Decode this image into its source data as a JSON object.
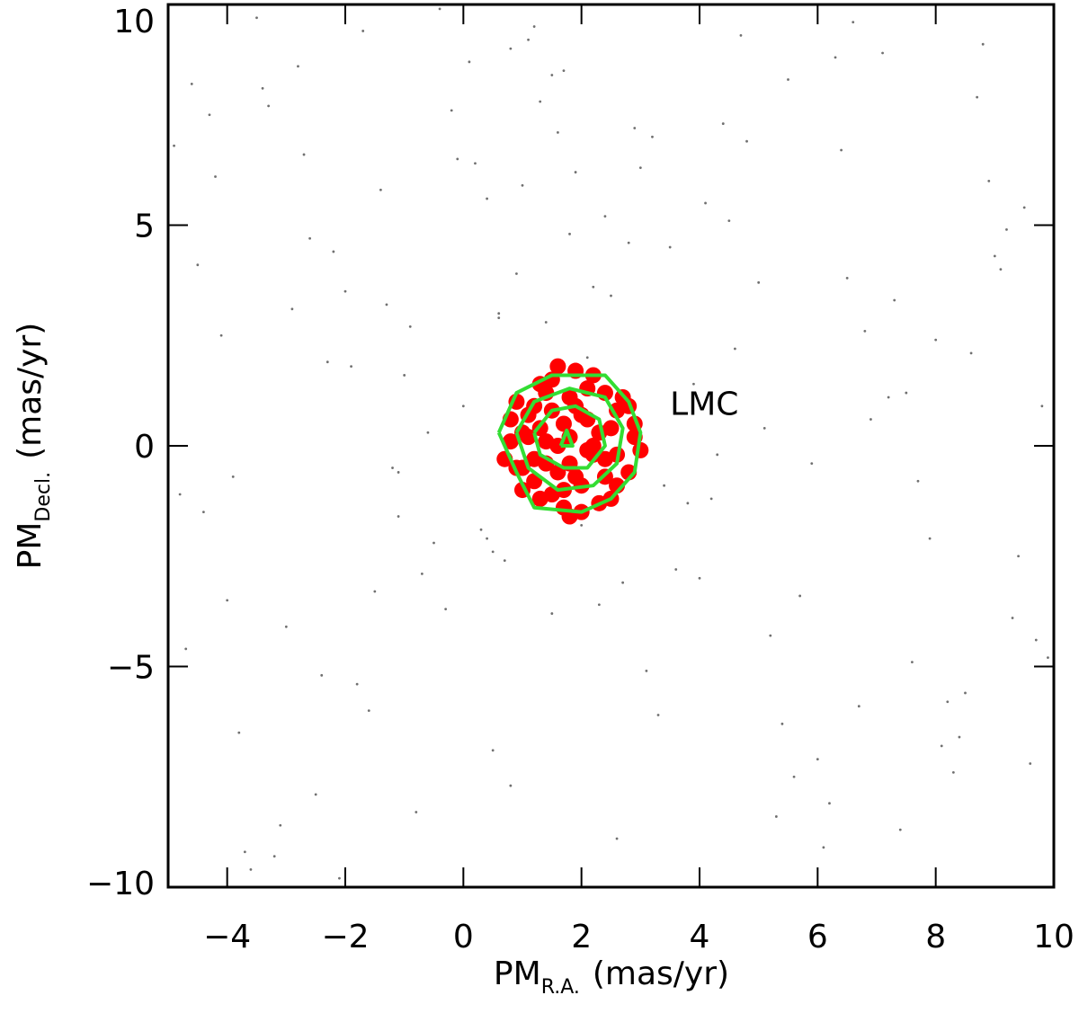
{
  "chart_data": {
    "type": "scatter",
    "x_label": {
      "main": "PM",
      "sub": "R.A.",
      "unit": "(mas/yr)"
    },
    "y_label": {
      "main": "PM",
      "sub": "Decl.",
      "unit": "(mas/yr)"
    },
    "annotations": [
      {
        "text": "LMC",
        "x": 3.5,
        "y": 0.95
      }
    ],
    "xlim": [
      -5,
      10
    ],
    "ylim": [
      -10,
      10
    ],
    "xticks": [
      {
        "value": -4,
        "label": "−4"
      },
      {
        "value": -2,
        "label": "−2"
      },
      0,
      2,
      4,
      6,
      8,
      10
    ],
    "yticks": [
      {
        "value": -10,
        "label": "−10"
      },
      {
        "value": -5,
        "label": "−5"
      },
      0,
      5,
      10
    ],
    "series": [
      {
        "mode": "points",
        "color": "#707070",
        "x": [
          -4.6,
          -3.8,
          -2.9,
          -1.7,
          -0.5,
          0.4,
          1.3,
          2.6,
          3.9,
          5.2,
          6.4,
          7.7,
          8.8,
          9.6,
          -4.1,
          -3.2,
          -2.2,
          -1.1,
          0.1,
          0.9,
          1.9,
          3.1,
          4.4,
          5.7,
          6.9,
          8.1,
          9.2,
          -4.8,
          -3.5,
          -2.5,
          -1.4,
          -0.3,
          0.6,
          1.5,
          2.8,
          3.6,
          4.8,
          6.1,
          7.3,
          8.5,
          9.8,
          -4.3,
          -3.0,
          -1.9,
          -0.8,
          0.2,
          1.1,
          2.2,
          3.3,
          4.6,
          5.9,
          7.1,
          8.3,
          9.4,
          -4.5,
          -3.6,
          -2.7,
          -1.5,
          -0.6,
          0.5,
          1.6,
          2.4,
          3.8,
          5.0,
          6.2,
          7.5,
          8.7,
          9.9,
          -3.9,
          -2.8,
          -1.8,
          -0.9,
          0.3,
          1.2,
          2.7,
          4.1,
          5.4,
          6.6,
          7.9,
          9.0,
          -4.7,
          -3.3,
          -2.1,
          -1.0,
          0.0,
          0.8,
          1.8,
          3.0,
          4.3,
          5.5,
          6.7,
          8.0,
          9.3,
          -4.2,
          -3.1,
          -2.0,
          -1.2,
          -0.2,
          0.7,
          1.4,
          2.3,
          3.5,
          4.7,
          6.0,
          7.2,
          8.4,
          9.5,
          -4.4,
          -3.4,
          -2.4,
          -1.3,
          -0.4,
          0.5,
          1.0,
          2.0,
          2.9,
          4.0,
          5.1,
          6.3,
          7.4,
          8.6,
          9.7,
          -4.9,
          -3.7,
          -2.6,
          -1.6,
          -0.7,
          0.4,
          1.7,
          2.5,
          3.4,
          4.5,
          5.6,
          6.8,
          8.2,
          9.1,
          -4.0,
          -2.3,
          -0.1,
          0.8,
          1.5,
          2.1,
          3.2,
          4.2,
          5.3,
          6.5,
          7.6,
          8.9,
          -1.1,
          0.6
        ],
        "values": [
          8.2,
          -6.5,
          3.1,
          9.4,
          -2.2,
          5.6,
          7.8,
          -8.9,
          1.4,
          -4.3,
          6.7,
          -0.8,
          9.1,
          -7.2,
          2.5,
          -9.3,
          4.4,
          -1.6,
          8.7,
          3.9,
          6.2,
          -5.1,
          7.3,
          -3.4,
          0.6,
          -6.8,
          4.9,
          -1.1,
          9.7,
          -7.9,
          5.8,
          -3.7,
          2.9,
          8.4,
          4.6,
          -2.8,
          6.9,
          -9.1,
          3.3,
          -5.6,
          0.9,
          7.5,
          -4.1,
          1.8,
          -8.3,
          6.4,
          9.2,
          3.6,
          -6.1,
          2.2,
          -0.4,
          8.9,
          -7.4,
          -2.5,
          4.1,
          -9.6,
          6.6,
          -3.3,
          0.3,
          -6.9,
          7.1,
          5.2,
          -1.3,
          3.7,
          -8.1,
          1.2,
          7.9,
          -4.8,
          -0.7,
          8.6,
          -5.4,
          2.7,
          -1.9,
          9.5,
          -3.1,
          5.5,
          -6.3,
          9.6,
          -2.1,
          4.3,
          -4.6,
          7.7,
          -9.8,
          1.6,
          0.9,
          -7.7,
          4.8,
          6.3,
          -0.2,
          8.3,
          -5.9,
          2.4,
          -3.9,
          6.1,
          -8.6,
          3.5,
          -0.5,
          7.6,
          -2.6,
          2.8,
          -3.6,
          4.5,
          9.3,
          -7.1,
          1.1,
          -6.6,
          5.4,
          -1.5,
          8.1,
          -5.2,
          3.2,
          9.9,
          -2.4,
          5.9,
          -1.8,
          7.2,
          -3.0,
          0.4,
          8.8,
          -8.7,
          2.1,
          -4.4,
          6.8,
          -9.2,
          4.7,
          -6.0,
          -2.9,
          -2.1,
          8.5,
          3.4,
          -0.9,
          5.1,
          -7.5,
          2.6,
          -5.8,
          4.0,
          -3.5,
          1.9,
          6.5,
          9.0,
          -3.8,
          2.0,
          7.0,
          -1.2,
          -8.4,
          3.8,
          -4.9,
          6.0,
          -0.6,
          3.0
        ]
      },
      {
        "mode": "points",
        "color": "#ff0000",
        "x": [
          1.8,
          1.2,
          2.4,
          0.8,
          2.9,
          1.5,
          2.1,
          1.0,
          2.6,
          1.7,
          1.3,
          2.2,
          0.7,
          3.0,
          1.9,
          1.4,
          2.5,
          1.1,
          2.8,
          1.6,
          2.0,
          0.9,
          2.3,
          1.8,
          1.2,
          2.7,
          1.5,
          2.1,
          0.8,
          2.9,
          1.7,
          1.3,
          2.4,
          1.0,
          2.6,
          1.9,
          1.4,
          2.2,
          1.1,
          2.5,
          1.6,
          2.0,
          0.9,
          2.8,
          1.8,
          1.2,
          2.3,
          1.5,
          2.1,
          1.7,
          1.3,
          2.4,
          1.0,
          2.6,
          1.9,
          1.4,
          2.2,
          1.6,
          2.0,
          1.8
        ],
        "values": [
          0.2,
          0.9,
          -0.7,
          0.1,
          0.5,
          -1.1,
          1.3,
          -0.5,
          0.8,
          -1.4,
          0.4,
          -0.2,
          -0.3,
          -0.1,
          1.7,
          1.2,
          -1.2,
          0.7,
          -0.6,
          0.0,
          -0.9,
          1.0,
          0.3,
          -0.4,
          -0.8,
          1.1,
          1.5,
          0.6,
          0.6,
          0.2,
          -1.0,
          1.4,
          -0.3,
          -1.0,
          -0.2,
          0.9,
          0.1,
          1.6,
          0.2,
          0.4,
          -0.6,
          -1.5,
          -0.5,
          0.9,
          1.1,
          -0.3,
          -1.3,
          0.8,
          -0.1,
          0.5,
          -1.2,
          1.2,
          0.3,
          -0.9,
          -0.7,
          -0.4,
          0.0,
          1.8,
          0.7,
          -1.6
        ]
      },
      {
        "mode": "line",
        "color": "#33dd33",
        "x": [
          0.6,
          0.9,
          1.5,
          2.4,
          2.8,
          3.0,
          2.9,
          2.5,
          2.0,
          1.2,
          0.9,
          0.6
        ],
        "values": [
          0.3,
          1.2,
          1.6,
          1.6,
          1.0,
          0.3,
          -0.6,
          -1.2,
          -1.5,
          -1.4,
          -0.6,
          0.3
        ]
      },
      {
        "mode": "line",
        "color": "#33dd33",
        "x": [
          0.9,
          1.2,
          1.8,
          2.4,
          2.7,
          2.6,
          2.2,
          1.6,
          1.1,
          0.9
        ],
        "values": [
          0.3,
          1.0,
          1.3,
          1.1,
          0.4,
          -0.4,
          -0.9,
          -1.0,
          -0.5,
          0.3
        ]
      },
      {
        "mode": "line",
        "color": "#33dd33",
        "x": [
          1.2,
          1.5,
          1.9,
          2.3,
          2.4,
          2.1,
          1.7,
          1.3,
          1.2
        ],
        "values": [
          0.3,
          0.8,
          0.9,
          0.6,
          0.0,
          -0.5,
          -0.5,
          -0.2,
          0.3
        ]
      },
      {
        "mode": "line",
        "color": "#33dd33",
        "x": [
          1.65,
          1.75,
          1.85,
          1.65
        ],
        "values": [
          0.0,
          0.35,
          0.0,
          0.0
        ]
      }
    ]
  }
}
